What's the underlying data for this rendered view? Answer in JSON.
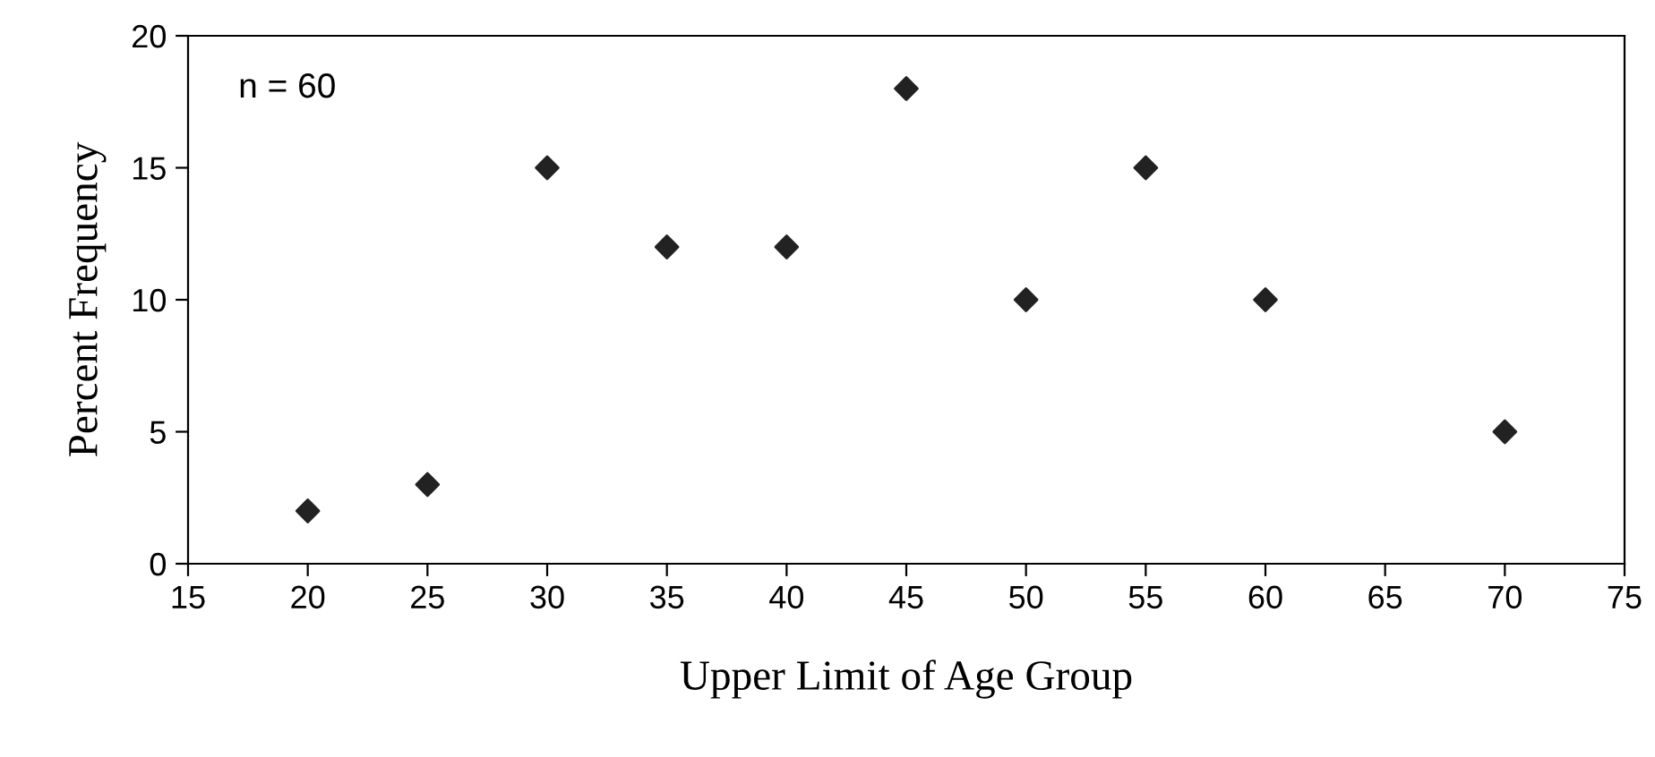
{
  "chart_data": {
    "type": "scatter",
    "xlabel": "Upper Limit of Age Group",
    "ylabel": "Percent Frequency",
    "annotations": [
      "n = 60"
    ],
    "x": [
      20,
      25,
      30,
      35,
      40,
      45,
      50,
      55,
      60,
      70
    ],
    "series": [
      {
        "color": "#222222",
        "values": [
          2,
          3,
          15,
          12,
          12,
          18,
          10,
          15,
          10,
          5
        ]
      }
    ],
    "xlim": [
      15,
      75
    ],
    "xticks": [
      15,
      20,
      25,
      30,
      35,
      40,
      45,
      50,
      55,
      60,
      65,
      70,
      75
    ],
    "ylim": [
      0,
      20
    ],
    "yticks": [
      0,
      5,
      10,
      15,
      20
    ],
    "marker": "diamond",
    "grid": false
  }
}
